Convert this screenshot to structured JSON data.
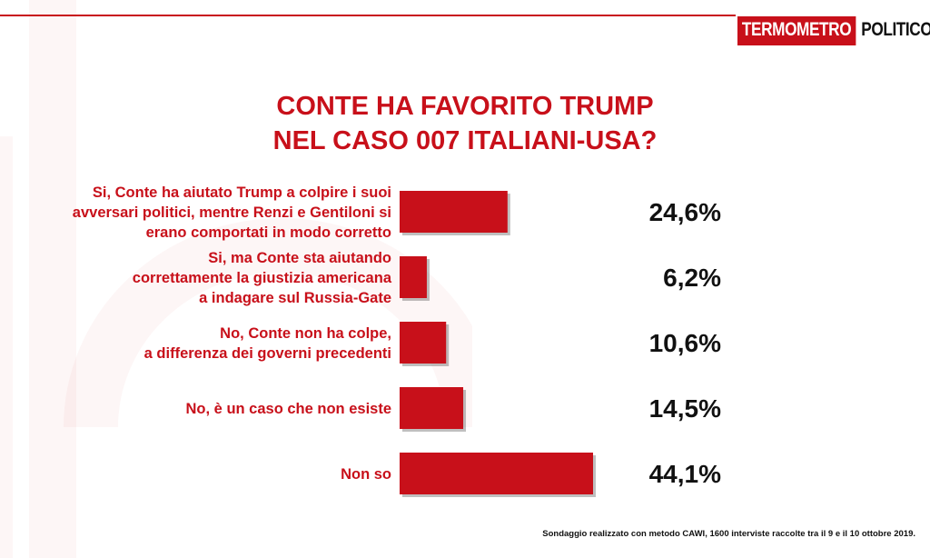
{
  "brand": {
    "logo_part1": "TERMOMETRO",
    "logo_part2": "POLITICO",
    "accent_color": "#c8101a"
  },
  "chart_data": {
    "type": "bar",
    "orientation": "horizontal",
    "title": "CONTE HA FAVORITO TRUMP NEL CASO 007 ITALIANI-USA?",
    "title_lines": [
      "CONTE HA FAVORITO TRUMP",
      "NEL CASO 007 ITALIANI-USA?"
    ],
    "categories": [
      [
        "Si, Conte ha aiutato  Trump a colpire i suoi",
        "avversari politici, mentre Renzi e Gentiloni si",
        "erano comportati in modo corretto"
      ],
      [
        "Si, ma Conte sta aiutando",
        "correttamente la giustizia americana",
        "a indagare sul Russia-Gate"
      ],
      [
        "No, Conte non ha colpe,",
        "a differenza dei governi precedenti"
      ],
      [
        "No, è un caso che non esiste"
      ],
      [
        "Non so"
      ]
    ],
    "values": [
      24.6,
      6.2,
      10.6,
      14.5,
      44.1
    ],
    "value_labels": [
      "24,6%",
      "6,2%",
      "10,6%",
      "14,5%",
      "44,1%"
    ],
    "unit": "%",
    "bar_color": "#c8101a",
    "xlim": [
      0,
      100
    ],
    "grid": false,
    "legend": "none"
  },
  "footer": {
    "note": "Sondaggio realizzato con metodo CAWI, 1600 interviste raccolte tra il 9 e il 10 ottobre 2019."
  }
}
